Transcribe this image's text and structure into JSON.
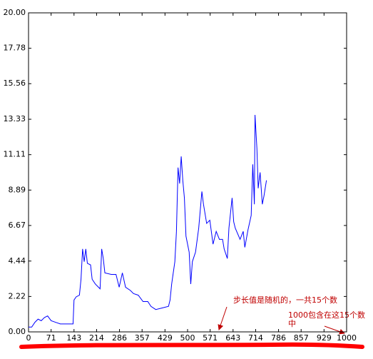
{
  "chart_data": {
    "type": "line",
    "color": "#0000ff",
    "x": [
      0,
      10,
      20,
      30,
      40,
      50,
      60,
      71,
      85,
      100,
      120,
      140,
      143,
      150,
      160,
      165,
      170,
      175,
      180,
      185,
      195,
      200,
      210,
      225,
      230,
      235,
      240,
      260,
      275,
      285,
      295,
      305,
      320,
      330,
      345,
      360,
      375,
      385,
      400,
      420,
      440,
      445,
      450,
      460,
      465,
      470,
      475,
      480,
      485,
      490,
      495,
      505,
      510,
      515,
      525,
      535,
      545,
      550,
      560,
      570,
      580,
      590,
      600,
      610,
      615,
      625,
      630,
      640,
      645,
      650,
      665,
      675,
      680,
      690,
      700,
      705,
      710,
      712,
      718,
      722,
      728,
      735,
      740,
      748
    ],
    "values": [
      0.3,
      0.3,
      0.6,
      0.8,
      0.7,
      0.9,
      1.0,
      0.7,
      0.6,
      0.5,
      0.5,
      0.5,
      2.0,
      2.2,
      2.3,
      3.3,
      5.2,
      4.4,
      5.2,
      4.3,
      4.2,
      3.3,
      3.0,
      2.7,
      5.2,
      4.6,
      3.7,
      3.6,
      3.6,
      2.8,
      3.7,
      2.8,
      2.6,
      2.4,
      2.3,
      1.9,
      1.9,
      1.6,
      1.4,
      1.5,
      1.6,
      2.0,
      3.0,
      4.4,
      6.3,
      10.3,
      9.3,
      11.0,
      9.5,
      8.4,
      6.0,
      5.0,
      3.0,
      4.4,
      5.0,
      6.5,
      8.8,
      8.0,
      6.8,
      7.0,
      5.5,
      6.3,
      5.8,
      5.8,
      5.2,
      4.6,
      6.5,
      8.4,
      6.9,
      6.5,
      5.8,
      6.3,
      5.3,
      6.4,
      7.3,
      10.5,
      8.0,
      13.6,
      11.5,
      9.0,
      10.0,
      8.0,
      8.5,
      9.5
    ],
    "xlim": [
      0,
      1000
    ],
    "ylim": [
      0,
      20
    ],
    "xticks": [
      0,
      71,
      143,
      214,
      286,
      357,
      429,
      500,
      571,
      643,
      714,
      786,
      857,
      929,
      1000
    ],
    "yticks": [
      {
        "value": 0,
        "label": "0.00"
      },
      2.22,
      4.44,
      6.67,
      8.89,
      11.11,
      13.33,
      15.56,
      17.78,
      {
        "value": 20,
        "label": "20.00"
      }
    ],
    "annotations": [
      {
        "text": "步长值是随机的，一共15个数"
      },
      {
        "lines": [
          "1000包含在这15个数",
          "中"
        ]
      }
    ]
  }
}
